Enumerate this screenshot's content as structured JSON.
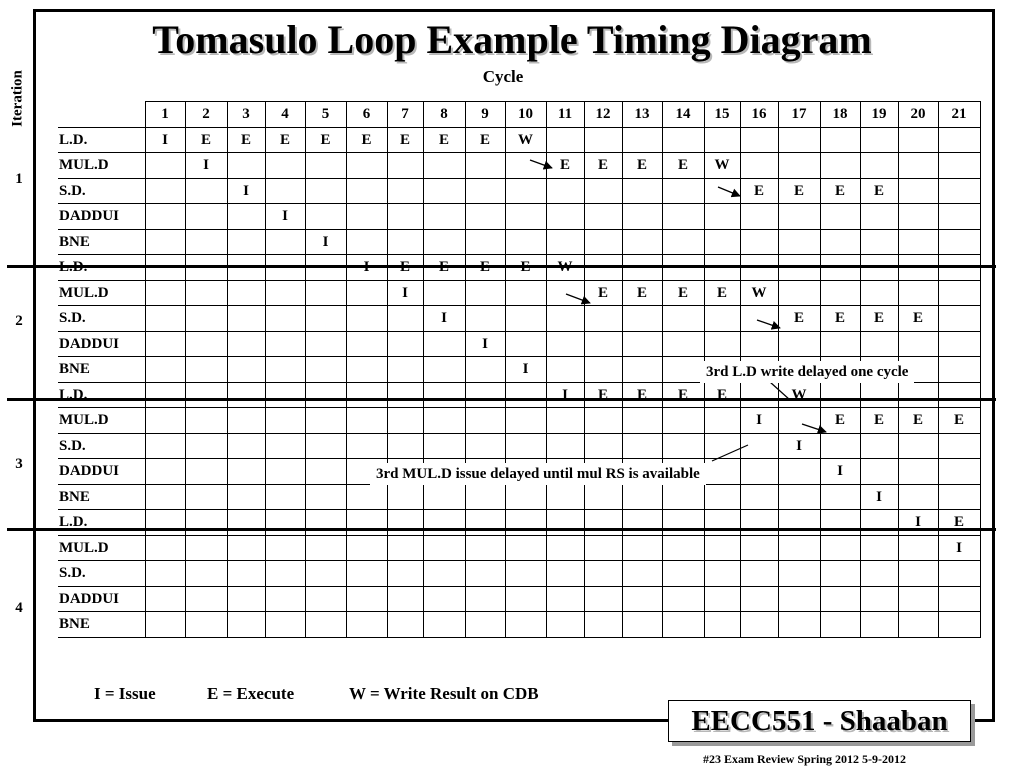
{
  "slide": {
    "title": "Tomasulo Loop Example Timing Diagram",
    "cycle_label": "Cycle",
    "iteration_label": "Iteration",
    "brand": "EECC551 - Shaaban",
    "footer": "#23   Exam Review Spring 2012  5-9-2012"
  },
  "legend": {
    "issue": "I =  Issue",
    "execute": "E  =  Execute",
    "write": "W = Write Result on CDB"
  },
  "timing": {
    "cycles": [
      "1",
      "2",
      "3",
      "4",
      "5",
      "6",
      "7",
      "8",
      "9",
      "10",
      "11",
      "12",
      "13",
      "14",
      "15",
      "16",
      "17",
      "18",
      "19",
      "20",
      "21"
    ],
    "iterations": [
      {
        "number": "1",
        "rows": [
          {
            "instr": "L.D.",
            "cells": {
              "1": "I",
              "2": "E",
              "3": "E",
              "4": "E",
              "5": "E",
              "6": "E",
              "7": "E",
              "8": "E",
              "9": "E",
              "10": "W"
            }
          },
          {
            "instr": "MUL.D",
            "cells": {
              "2": "I",
              "11": "E",
              "12": "E",
              "13": "E",
              "14": "E",
              "15": "W"
            }
          },
          {
            "instr": "S.D.",
            "cells": {
              "3": "I",
              "16": "E",
              "17": "E",
              "18": "E",
              "19": "E"
            }
          },
          {
            "instr": "DADDUI",
            "cells": {
              "4": "I"
            }
          },
          {
            "instr": "BNE",
            "cells": {
              "5": "I"
            }
          }
        ]
      },
      {
        "number": "2",
        "rows": [
          {
            "instr": "L.D.",
            "cells": {
              "6": "I",
              "7": "E",
              "8": "E",
              "9": "E",
              "10": "E",
              "11": "W"
            }
          },
          {
            "instr": "MUL.D",
            "cells": {
              "7": "I",
              "12": "E",
              "13": "E",
              "14": "E",
              "15": "E",
              "16": "W"
            }
          },
          {
            "instr": "S.D.",
            "cells": {
              "8": "I",
              "17": "E",
              "18": "E",
              "19": "E",
              "20": "E"
            }
          },
          {
            "instr": "DADDUI",
            "cells": {
              "9": "I"
            }
          },
          {
            "instr": "BNE",
            "cells": {
              "10": "I"
            }
          }
        ]
      },
      {
        "number": "3",
        "rows": [
          {
            "instr": "L.D.",
            "cells": {
              "11": "I",
              "12": "E",
              "13": "E",
              "14": "E",
              "15": "E",
              "17": "W"
            }
          },
          {
            "instr": "MUL.D",
            "cells": {
              "16": "I",
              "18": "E",
              "19": "E",
              "20": "E",
              "21": "E"
            }
          },
          {
            "instr": "S.D.",
            "cells": {
              "17": "I"
            }
          },
          {
            "instr": "DADDUI",
            "cells": {
              "18": "I"
            }
          },
          {
            "instr": "BNE",
            "cells": {
              "19": "I"
            }
          }
        ]
      },
      {
        "number": "4",
        "rows": [
          {
            "instr": "L.D.",
            "cells": {
              "20": "I",
              "21": "E"
            }
          },
          {
            "instr": "MUL.D",
            "cells": {
              "21": "I"
            }
          },
          {
            "instr": "S.D.",
            "cells": {}
          },
          {
            "instr": "DADDUI",
            "cells": {}
          },
          {
            "instr": "BNE",
            "cells": {}
          }
        ]
      }
    ]
  },
  "annotations": {
    "ld_delay": "3rd L.D write delayed one cycle",
    "muld_delay": "3rd MUL.D issue delayed until mul RS is available"
  }
}
